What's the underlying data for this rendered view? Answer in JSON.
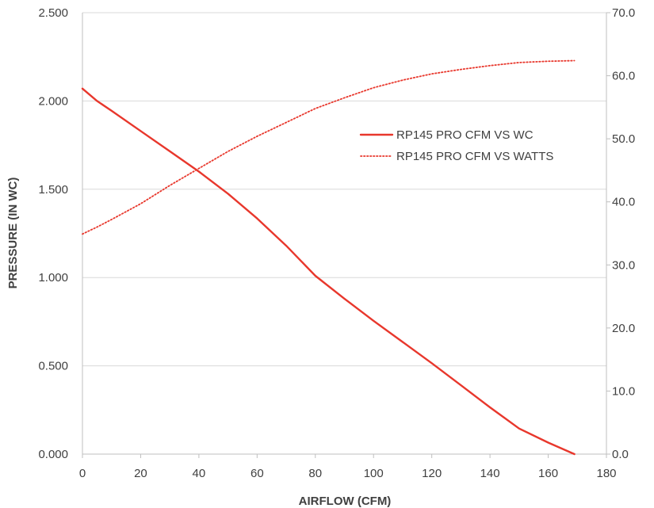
{
  "chart_data": {
    "type": "line",
    "xlabel": "AIRFLOW (CFM)",
    "ylabel": "PRESSURE (IN WC)",
    "xlim": [
      0,
      180
    ],
    "ylim": [
      0,
      2.5
    ],
    "y2lim": [
      0,
      70
    ],
    "x_ticks": [
      "0",
      "20",
      "40",
      "60",
      "80",
      "100",
      "120",
      "140",
      "160",
      "180"
    ],
    "y_ticks": [
      "0.000",
      "0.500",
      "1.000",
      "1.500",
      "2.000",
      "2.500"
    ],
    "y2_ticks": [
      "0.0",
      "10.0",
      "20.0",
      "30.0",
      "40.0",
      "50.0",
      "60.0",
      "70.0"
    ],
    "grid": "horizontal",
    "legend_position": "right",
    "series": [
      {
        "name": "RP145 PRO CFM VS WC",
        "axis": "left",
        "style": "solid",
        "color": "#e8372c",
        "x": [
          0,
          5,
          10,
          20,
          30,
          40,
          50,
          60,
          70,
          80,
          90,
          100,
          110,
          120,
          130,
          140,
          150,
          160,
          169
        ],
        "y": [
          2.07,
          2.0,
          1.945,
          1.83,
          1.715,
          1.6,
          1.475,
          1.335,
          1.18,
          1.01,
          0.88,
          0.755,
          0.635,
          0.515,
          0.39,
          0.265,
          0.145,
          0.065,
          0.0
        ]
      },
      {
        "name": "RP145 PRO CFM VS WATTS",
        "axis": "right",
        "style": "dotted",
        "color": "#e8372c",
        "x": [
          0,
          5,
          10,
          20,
          30,
          40,
          50,
          60,
          70,
          80,
          90,
          100,
          110,
          120,
          130,
          140,
          150,
          160,
          169
        ],
        "y": [
          34.9,
          36.0,
          37.2,
          39.7,
          42.6,
          45.3,
          48.0,
          50.4,
          52.6,
          54.8,
          56.5,
          58.1,
          59.3,
          60.3,
          61.0,
          61.6,
          62.1,
          62.3,
          62.4
        ]
      }
    ]
  }
}
